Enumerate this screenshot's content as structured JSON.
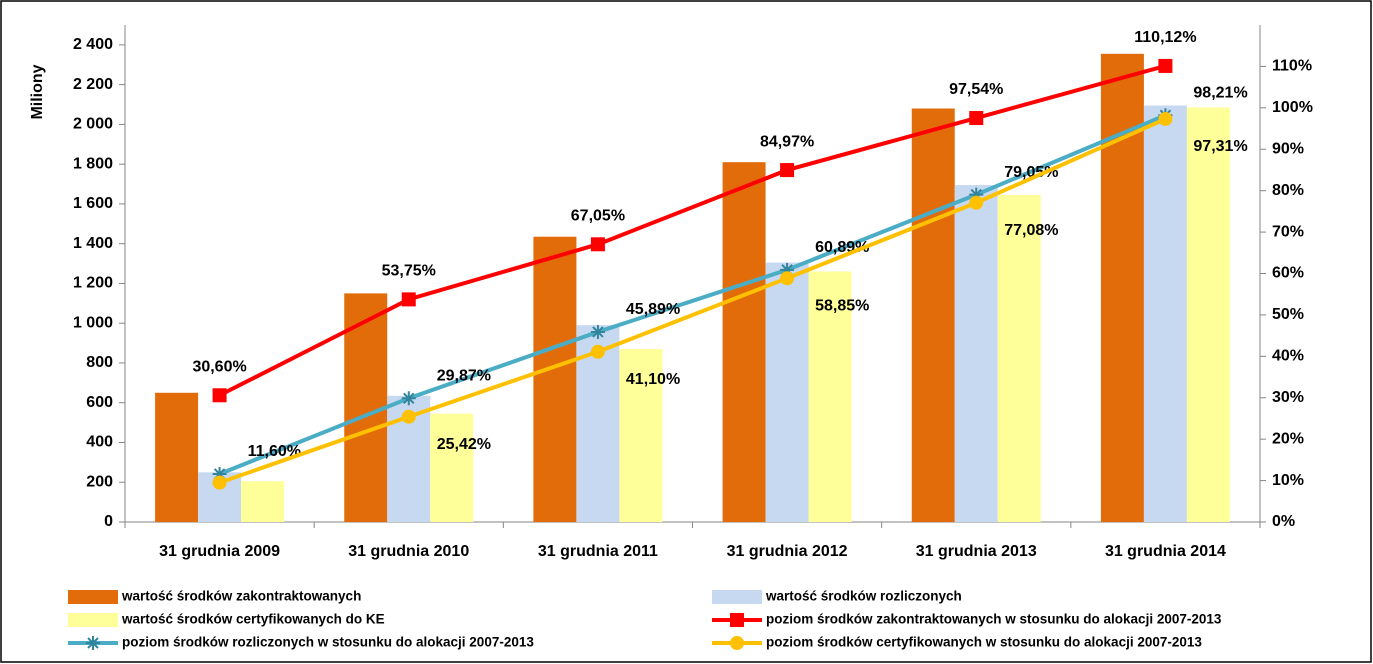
{
  "chart_data": {
    "type": "bar_line",
    "y_label": "Miliony",
    "categories": [
      "31 grudnia 2009",
      "31 grudnia 2010",
      "31 grudnia 2011",
      "31 grudnia 2012",
      "31 grudnia 2013",
      "31 grudnia 2014"
    ],
    "ylim": [
      0,
      2500
    ],
    "yticks": [
      0,
      200,
      400,
      600,
      800,
      {
        "value": 1000,
        "label": "1 000"
      },
      {
        "value": 1200,
        "label": "1 200"
      },
      {
        "value": 1400,
        "label": "1 400"
      },
      {
        "value": 1600,
        "label": "1 600"
      },
      {
        "value": 1800,
        "label": "1 800"
      },
      {
        "value": 2000,
        "label": "2 000"
      },
      {
        "value": 2200,
        "label": "2 200"
      },
      {
        "value": 2400,
        "label": "2 400"
      }
    ],
    "y2lim": [
      0,
      120
    ],
    "y2ticks": [
      {
        "value": 0,
        "label": "0%"
      },
      {
        "value": 10,
        "label": "10%"
      },
      {
        "value": 20,
        "label": "20%"
      },
      {
        "value": 30,
        "label": "30%"
      },
      {
        "value": 40,
        "label": "40%"
      },
      {
        "value": 50,
        "label": "50%"
      },
      {
        "value": 60,
        "label": "60%"
      },
      {
        "value": 70,
        "label": "70%"
      },
      {
        "value": 80,
        "label": "80%"
      },
      {
        "value": 90,
        "label": "90%"
      },
      {
        "value": 100,
        "label": "100%"
      },
      {
        "value": 110,
        "label": "110%"
      }
    ],
    "series": [
      {
        "name": "wartość środków zakontraktowanych",
        "kind": "bar",
        "color": "#e36c0a",
        "values": [
          650,
          1150,
          1435,
          1810,
          2080,
          2355
        ]
      },
      {
        "name": "wartość środków rozliczonych",
        "kind": "bar",
        "color": "#c6d9f1",
        "values": [
          250,
          635,
          990,
          1305,
          1695,
          2095
        ]
      },
      {
        "name": "wartość środków certyfikowanych do KE",
        "kind": "bar",
        "color": "#ffff99",
        "values": [
          205,
          545,
          870,
          1260,
          1645,
          2085
        ]
      },
      {
        "name": "poziom środków zakontraktowanych w stosunku do alokacji 2007-2013",
        "kind": "line",
        "axis": "y2",
        "color": "#ff0000",
        "marker": "square",
        "values": [
          30.6,
          53.75,
          67.05,
          84.97,
          97.54,
          110.12
        ],
        "value_labels": [
          "30,60%",
          "53,75%",
          "67,05%",
          "84,97%",
          "97,54%",
          "110,12%"
        ]
      },
      {
        "name": "poziom środków rozliczonych w stosunku do alokacji 2007-2013",
        "kind": "line",
        "axis": "y2",
        "color": "#4bacc6",
        "marker": "star",
        "values": [
          11.6,
          29.87,
          45.89,
          60.89,
          79.05,
          98.21
        ],
        "value_labels": [
          "11,60%",
          "29,87%",
          "45,89%",
          "60,89%",
          "79,05%",
          "98,21%"
        ]
      },
      {
        "name": "poziom środków certyfikowanych w stosunku do alokacji 2007-2013",
        "kind": "line",
        "axis": "y2",
        "color": "#ffc000",
        "marker": "circle",
        "values": [
          9.5,
          25.42,
          41.1,
          58.85,
          77.08,
          97.31
        ],
        "value_labels": [
          null,
          "25,42%",
          "41,10%",
          "58,85%",
          "77,08%",
          "97,31%"
        ]
      }
    ]
  }
}
